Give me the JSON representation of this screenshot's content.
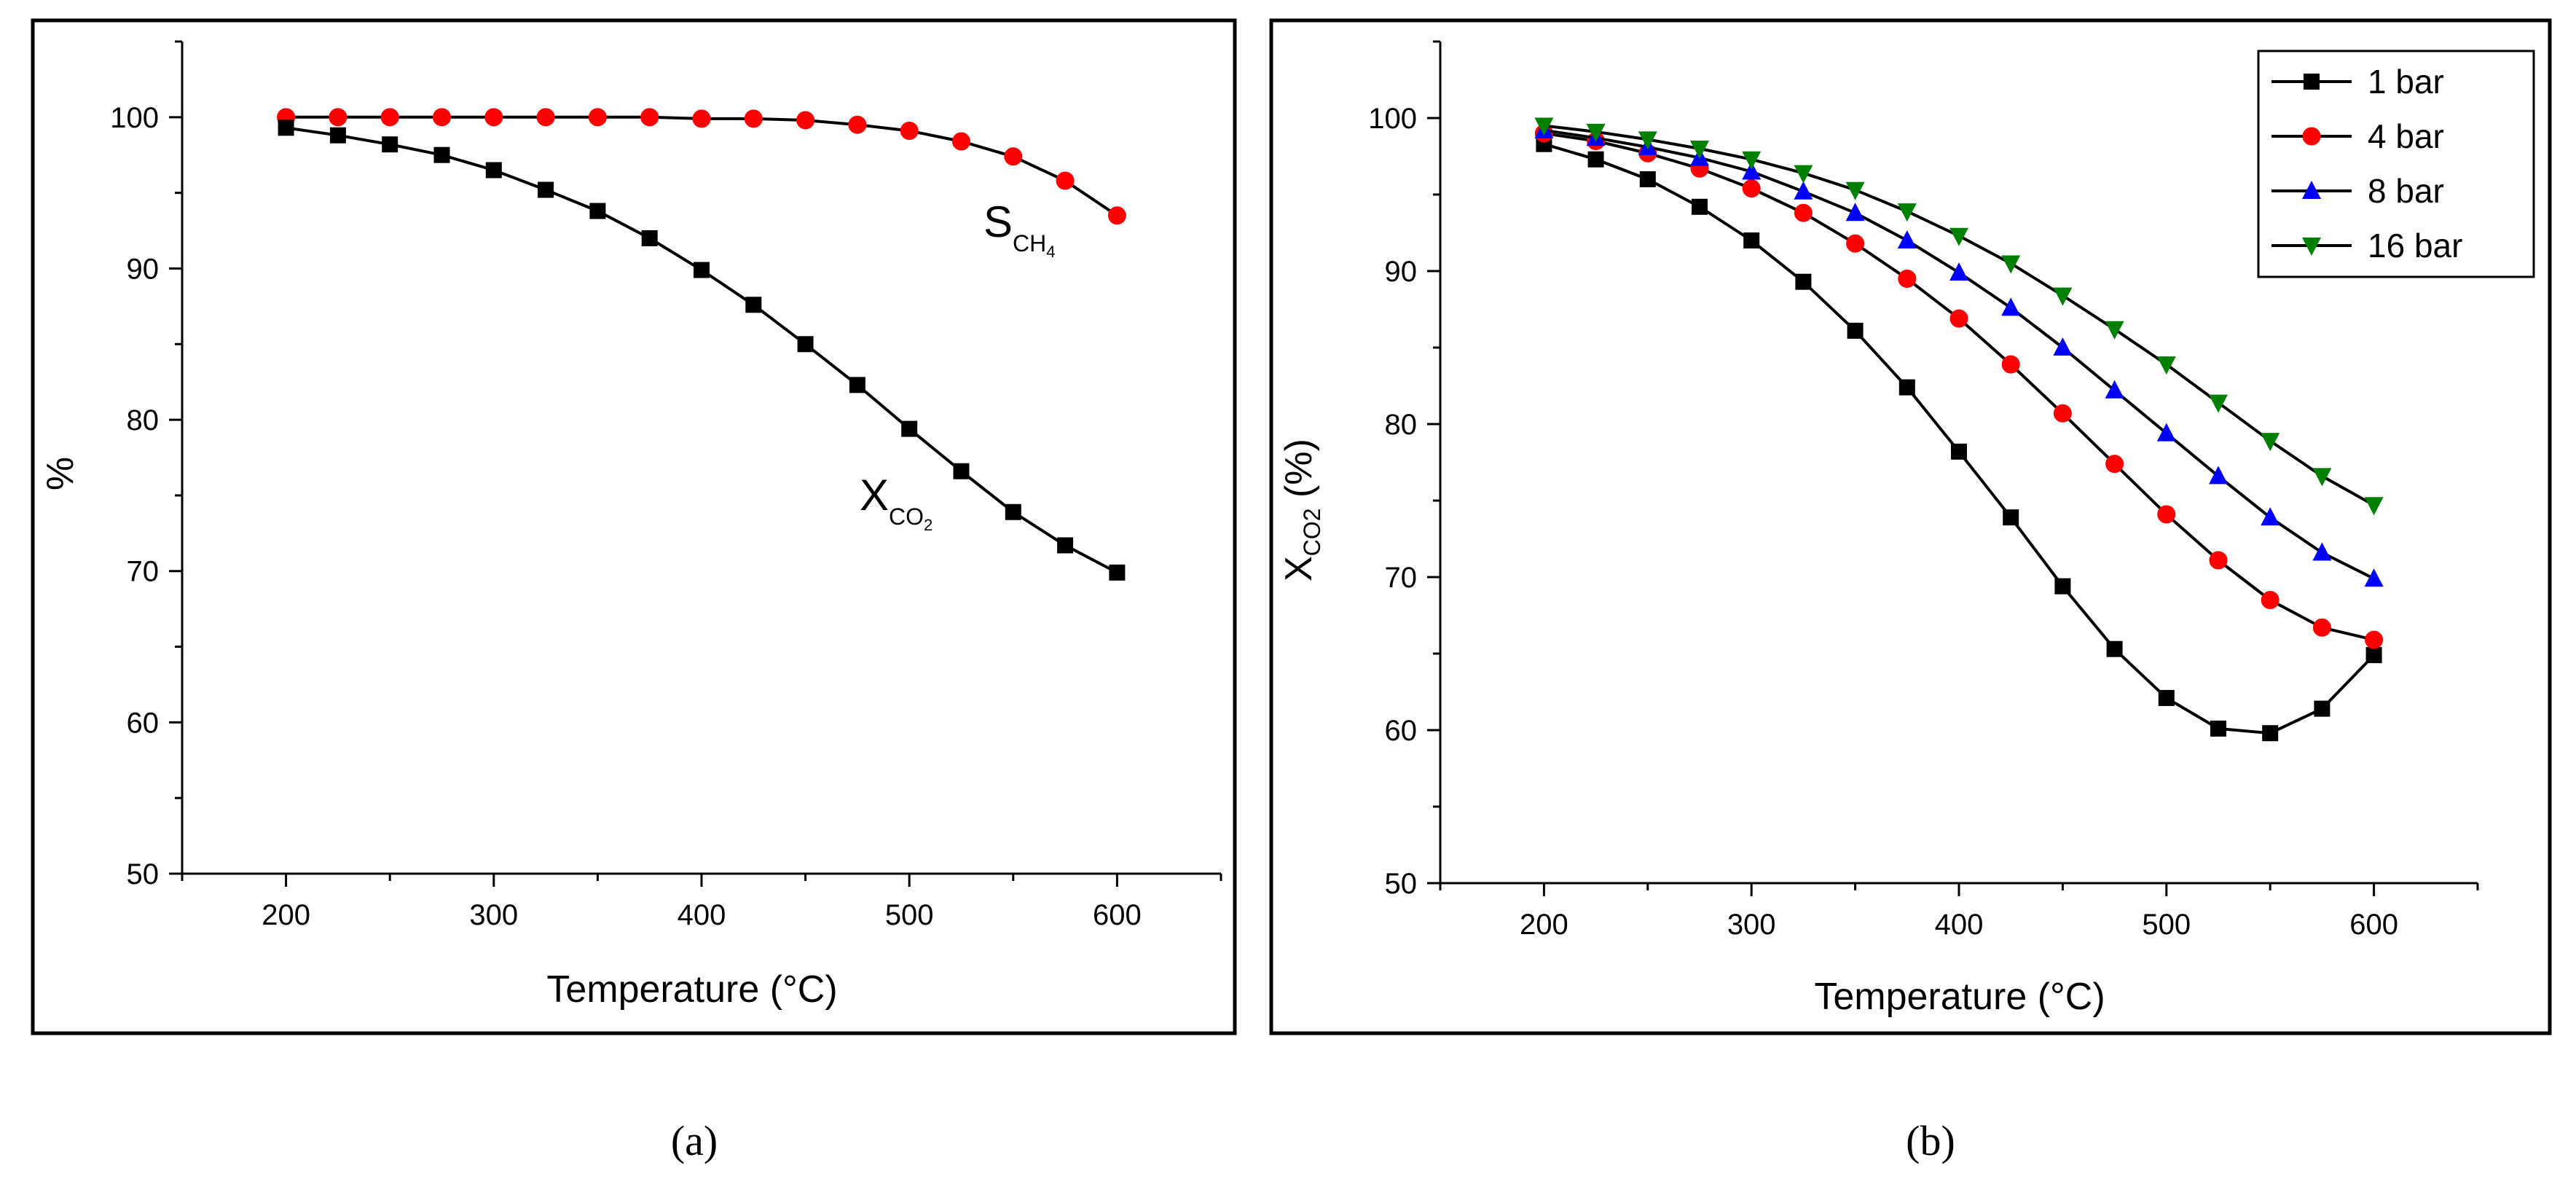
{
  "chart_data": [
    {
      "panel": "a",
      "type": "line",
      "caption": "(a)",
      "xlabel": "Temperature (°C)",
      "ylabel": "%",
      "xlim": [
        150,
        650
      ],
      "ylim": [
        50,
        105
      ],
      "xticks": [
        200,
        300,
        400,
        500,
        600
      ],
      "yticks": [
        50,
        60,
        70,
        80,
        90,
        100
      ],
      "x": [
        200,
        225,
        250,
        275,
        300,
        325,
        350,
        375,
        400,
        425,
        450,
        475,
        500,
        525,
        550,
        575,
        600
      ],
      "series": [
        {
          "name": "S_CH4",
          "label_main": "S",
          "label_sub": "CH",
          "label_subsub": "4",
          "color": "#ff0000",
          "marker": "circle",
          "values": [
            100,
            100,
            100,
            100,
            100,
            100,
            100,
            100,
            99.9,
            99.9,
            99.8,
            99.5,
            99.1,
            98.4,
            97.4,
            95.8,
            93.5
          ]
        },
        {
          "name": "X_CO2",
          "label_main": "X",
          "label_sub": "CO",
          "label_subsub": "2",
          "color": "#000000",
          "marker": "square",
          "values": [
            99.3,
            98.8,
            98.2,
            97.5,
            96.5,
            95.2,
            93.8,
            92.0,
            89.9,
            87.6,
            85.0,
            82.3,
            79.4,
            76.6,
            73.9,
            71.7,
            69.9
          ]
        }
      ]
    },
    {
      "panel": "b",
      "type": "line",
      "caption": "(b)",
      "xlabel": "Temperature (°C)",
      "ylabel_main": "X",
      "ylabel_sub": "CO2",
      "ylabel_unit": " (%)",
      "xlim": [
        150,
        650
      ],
      "ylim": [
        50,
        105
      ],
      "xticks": [
        200,
        300,
        400,
        500,
        600
      ],
      "yticks": [
        50,
        60,
        70,
        80,
        90,
        100
      ],
      "x": [
        200,
        225,
        250,
        275,
        300,
        325,
        350,
        375,
        400,
        425,
        450,
        475,
        500,
        525,
        550,
        575,
        600
      ],
      "legend_position": "top-right",
      "series": [
        {
          "name": "1 bar",
          "color": "#000000",
          "marker": "square",
          "values": [
            98.3,
            97.3,
            96.0,
            94.2,
            92.0,
            89.3,
            86.1,
            82.4,
            78.2,
            73.9,
            69.4,
            65.3,
            62.1,
            60.1,
            59.8,
            61.4,
            64.9
          ]
        },
        {
          "name": "4 bar",
          "color": "#ff0000",
          "marker": "circle",
          "values": [
            99.0,
            98.5,
            97.7,
            96.7,
            95.4,
            93.8,
            91.8,
            89.5,
            86.9,
            83.9,
            80.7,
            77.4,
            74.1,
            71.1,
            68.5,
            66.7,
            65.9
          ]
        },
        {
          "name": "8 bar",
          "color": "#0000ff",
          "marker": "triangle-up",
          "values": [
            99.2,
            98.7,
            98.1,
            97.4,
            96.5,
            95.2,
            93.8,
            92.0,
            89.9,
            87.6,
            85.0,
            82.2,
            79.4,
            76.6,
            73.9,
            71.6,
            69.9
          ]
        },
        {
          "name": "16 bar",
          "color": "#008000",
          "marker": "triangle-down",
          "values": [
            99.5,
            99.1,
            98.6,
            98.0,
            97.3,
            96.4,
            95.3,
            93.9,
            92.3,
            90.5,
            88.4,
            86.2,
            83.9,
            81.4,
            78.9,
            76.6,
            74.7
          ]
        }
      ]
    }
  ]
}
